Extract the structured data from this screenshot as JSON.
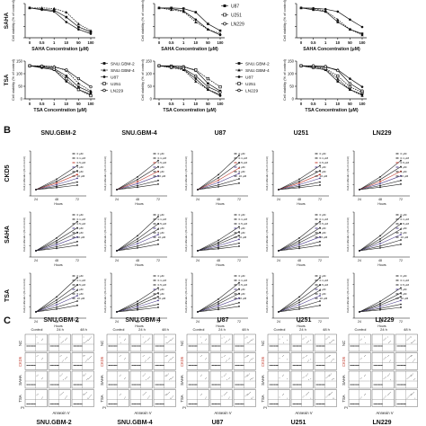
{
  "panel_letters": [
    "B",
    "C"
  ],
  "chart_data": [
    {
      "type": "line",
      "section": "A",
      "row_label": "SAHA",
      "xlabel": "SAHA Concentration (μM)",
      "ylabel": "Cell viability (% of control)",
      "x": [
        "0",
        "0.5",
        "1",
        "10",
        "50",
        "100"
      ],
      "legend": [
        {
          "name": "U87",
          "marker": "filled-square"
        },
        {
          "name": "U251",
          "marker": "open-square"
        },
        {
          "name": "LN229",
          "marker": "open-circle"
        }
      ]
    },
    {
      "type": "line",
      "section": "A",
      "row_label": "TSA",
      "xlabel": "TSA Concentration (μM)",
      "ylabel": "Cell viability (% of control)",
      "x": [
        "0",
        "0.5",
        "1",
        "10",
        "50",
        "100"
      ],
      "ylim": [
        0,
        150
      ],
      "yticks": [
        "0",
        "50",
        "100",
        "150"
      ],
      "legend_left": [
        {
          "name": "SNU.GBM-2",
          "marker": "filled-square"
        },
        {
          "name": "SNU.GBM-4",
          "marker": "filled-triangle"
        },
        {
          "name": "U87",
          "marker": "filled-circle"
        },
        {
          "name": "U251",
          "marker": "open-square"
        },
        {
          "name": "LN229",
          "marker": "open-circle"
        }
      ],
      "legend_right": [
        {
          "name": "SNU.GBM-2",
          "marker": "filled-square"
        },
        {
          "name": "SNU.GBM-4",
          "marker": "filled-triangle"
        },
        {
          "name": "U87",
          "marker": "filled-circle"
        },
        {
          "name": "U251",
          "marker": "open-square"
        },
        {
          "name": "LN229",
          "marker": "open-circle"
        }
      ]
    },
    {
      "type": "line",
      "section": "B",
      "xlabel": "Hours",
      "ylabel": "Cell proliferation (% of control)",
      "x": [
        "24",
        "48",
        "72"
      ],
      "columns": [
        "SNU.GBM-2",
        "SNU.GBM-4",
        "U87",
        "U251",
        "LN229"
      ],
      "rows": [
        "CKD5",
        "SAHA",
        "TSA"
      ],
      "legend": [
        "0 μM",
        "0.1 μM",
        "0.5 μM",
        "1 μM",
        "5 μM",
        "10 μM"
      ]
    },
    {
      "type": "scatter",
      "section": "C",
      "columns": [
        "SNU.GBM-2",
        "SNU.GBM-4",
        "U87",
        "U251",
        "LN229"
      ],
      "timepoints": [
        "Control",
        "24 h",
        "48 h"
      ],
      "rows": [
        "NC",
        "CKD5",
        "SAHA",
        "TSA"
      ],
      "xlabel": "Annexin V",
      "ylabel": "PI"
    }
  ],
  "bottom_titles": [
    "SNU.GBM-2",
    "SNU.GBM-4",
    "U87",
    "U251",
    "LN229"
  ]
}
